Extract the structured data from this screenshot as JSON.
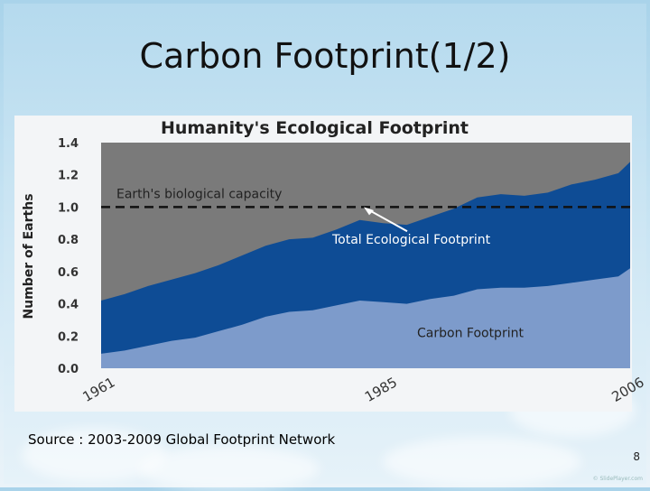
{
  "slide": {
    "title": "Carbon Footprint(1/2)",
    "source": "Source : 2003-2009 Global Footprint Network",
    "page_number": "8",
    "watermark": "© SlidePlayer.com"
  },
  "colors": {
    "capacity_bg": "#7a7a7a",
    "total": "#0e4c95",
    "carbon": "#7d9bcb"
  },
  "chart_data": {
    "type": "area",
    "title": "Humanity's Ecological Footprint",
    "ylabel": "Number of Earths",
    "xlabel": "",
    "ylim": [
      0,
      1.4
    ],
    "xlim": [
      1961,
      2006
    ],
    "y_ticks": [
      "0.0",
      "0.2",
      "0.4",
      "0.6",
      "0.8",
      "1.0",
      "1.2",
      "1.4"
    ],
    "x_ticks": [
      1961,
      1985,
      2006
    ],
    "reference_line": {
      "value": 1.0,
      "label": "Earth's biological capacity"
    },
    "x": [
      1961,
      1963,
      1965,
      1967,
      1969,
      1971,
      1973,
      1975,
      1977,
      1979,
      1981,
      1983,
      1985,
      1987,
      1989,
      1991,
      1993,
      1995,
      1997,
      1999,
      2001,
      2003,
      2005,
      2006
    ],
    "series": [
      {
        "name": "Total Ecological Footprint",
        "values": [
          0.42,
          0.46,
          0.51,
          0.55,
          0.59,
          0.64,
          0.7,
          0.76,
          0.8,
          0.81,
          0.86,
          0.92,
          0.9,
          0.89,
          0.94,
          0.99,
          1.06,
          1.08,
          1.07,
          1.09,
          1.14,
          1.17,
          1.21,
          1.28
        ]
      },
      {
        "name": "Carbon Footprint",
        "values": [
          0.09,
          0.11,
          0.14,
          0.17,
          0.19,
          0.23,
          0.27,
          0.32,
          0.35,
          0.36,
          0.39,
          0.42,
          0.41,
          0.4,
          0.43,
          0.45,
          0.49,
          0.5,
          0.5,
          0.51,
          0.53,
          0.55,
          0.57,
          0.62
        ]
      }
    ]
  }
}
